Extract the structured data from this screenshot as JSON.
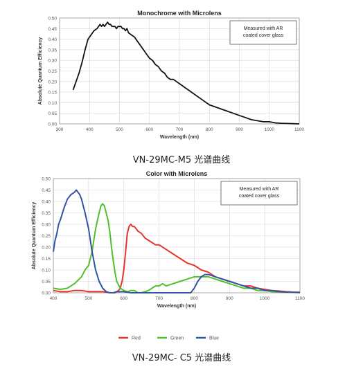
{
  "caption1": "VN-29MC-M5 光谱曲线",
  "caption2": "VN-29MC- C5 光谱曲线",
  "chart_data": [
    {
      "type": "line",
      "title": "Monochrome with Microlens",
      "xlabel": "Wavelength (nm)",
      "ylabel": "Absolute Quantum Efficiency",
      "xlim": [
        300,
        1100
      ],
      "ylim": [
        0,
        0.5
      ],
      "xticks": [
        "300",
        "400",
        "500",
        "600",
        "700",
        "800",
        "900",
        "1000",
        "1100"
      ],
      "yticks": [
        "0.00",
        "0.05",
        "0.10",
        "0.15",
        "0.20",
        "0.25",
        "0.30",
        "0.35",
        "0.40",
        "0.45",
        "0.50"
      ],
      "grid": true,
      "annotation": [
        "Measured with AR",
        "coated cover glass"
      ],
      "series": [
        {
          "color": "#111111",
          "x": [
            345,
            355,
            365,
            375,
            385,
            395,
            405,
            415,
            425,
            435,
            440,
            445,
            450,
            455,
            460,
            465,
            470,
            475,
            480,
            485,
            490,
            495,
            500,
            505,
            510,
            515,
            520,
            525,
            530,
            540,
            550,
            560,
            570,
            580,
            590,
            600,
            610,
            620,
            630,
            640,
            650,
            660,
            670,
            680,
            690,
            700,
            710,
            720,
            730,
            740,
            760,
            780,
            800,
            820,
            840,
            860,
            880,
            900,
            920,
            940,
            960,
            980,
            1000,
            1020,
            1040,
            1060,
            1080,
            1100
          ],
          "y": [
            0.16,
            0.2,
            0.24,
            0.29,
            0.35,
            0.4,
            0.42,
            0.44,
            0.45,
            0.47,
            0.46,
            0.47,
            0.46,
            0.47,
            0.48,
            0.47,
            0.47,
            0.46,
            0.46,
            0.46,
            0.45,
            0.46,
            0.46,
            0.46,
            0.45,
            0.45,
            0.44,
            0.45,
            0.43,
            0.42,
            0.41,
            0.39,
            0.37,
            0.35,
            0.33,
            0.31,
            0.3,
            0.28,
            0.27,
            0.25,
            0.24,
            0.22,
            0.21,
            0.21,
            0.2,
            0.19,
            0.18,
            0.17,
            0.16,
            0.15,
            0.13,
            0.11,
            0.09,
            0.08,
            0.07,
            0.06,
            0.05,
            0.04,
            0.03,
            0.02,
            0.015,
            0.01,
            0.01,
            0.005,
            0.003,
            0.002,
            0.001,
            0.0
          ]
        }
      ]
    },
    {
      "type": "line",
      "title": "Color with Microlens",
      "xlabel": "Wavelength (nm)",
      "ylabel": "Absolute Quantum Efficiency",
      "xlim": [
        400,
        1100
      ],
      "ylim": [
        0,
        0.5
      ],
      "xticks": [
        "400",
        "500",
        "600",
        "700",
        "800",
        "900",
        "1000",
        "1100"
      ],
      "yticks": [
        "0.00",
        "0.05",
        "0.10",
        "0.15",
        "0.20",
        "0.25",
        "0.30",
        "0.35",
        "0.40",
        "0.45",
        "0.50"
      ],
      "grid": true,
      "legend": "bottom",
      "annotation": [
        "Measured with AR",
        "coated cover glass"
      ],
      "series": [
        {
          "name": "Red",
          "color": "#e8322a",
          "x": [
            400,
            420,
            440,
            460,
            480,
            500,
            520,
            540,
            560,
            575,
            585,
            590,
            595,
            600,
            605,
            610,
            615,
            620,
            625,
            630,
            640,
            650,
            660,
            670,
            680,
            690,
            700,
            720,
            740,
            760,
            780,
            800,
            820,
            840,
            860,
            880,
            900,
            920,
            940,
            960,
            980,
            1000,
            1020,
            1040,
            1060,
            1080,
            1100
          ],
          "y": [
            0.01,
            0.005,
            0.005,
            0.01,
            0.01,
            0.005,
            0.005,
            0.005,
            0.0,
            0.0,
            0.01,
            0.02,
            0.05,
            0.1,
            0.18,
            0.26,
            0.29,
            0.3,
            0.29,
            0.29,
            0.27,
            0.26,
            0.24,
            0.23,
            0.22,
            0.21,
            0.21,
            0.19,
            0.17,
            0.15,
            0.13,
            0.12,
            0.1,
            0.09,
            0.07,
            0.06,
            0.05,
            0.04,
            0.03,
            0.03,
            0.02,
            0.015,
            0.01,
            0.008,
            0.005,
            0.003,
            0.002
          ]
        },
        {
          "name": "Green",
          "color": "#4fc02a",
          "x": [
            400,
            420,
            440,
            460,
            480,
            490,
            500,
            510,
            520,
            530,
            535,
            540,
            545,
            550,
            555,
            560,
            565,
            570,
            575,
            580,
            590,
            600,
            610,
            620,
            630,
            640,
            650,
            660,
            670,
            680,
            690,
            700,
            710,
            720,
            740,
            760,
            780,
            800,
            820,
            840,
            860,
            880,
            900,
            920,
            940,
            960,
            980,
            1000,
            1020,
            1040,
            1060,
            1080,
            1100
          ],
          "y": [
            0.02,
            0.015,
            0.02,
            0.04,
            0.07,
            0.1,
            0.12,
            0.18,
            0.28,
            0.35,
            0.38,
            0.39,
            0.38,
            0.35,
            0.32,
            0.27,
            0.2,
            0.14,
            0.09,
            0.05,
            0.02,
            0.01,
            0.005,
            0.01,
            0.01,
            0.0,
            0.0,
            0.005,
            0.01,
            0.02,
            0.03,
            0.03,
            0.04,
            0.03,
            0.04,
            0.05,
            0.06,
            0.07,
            0.07,
            0.07,
            0.06,
            0.05,
            0.04,
            0.03,
            0.02,
            0.02,
            0.01,
            0.01,
            0.005,
            0.003,
            0.002,
            0.002,
            0.001
          ]
        },
        {
          "name": "Blue",
          "color": "#3153a4",
          "x": [
            400,
            405,
            410,
            415,
            420,
            430,
            440,
            450,
            460,
            465,
            470,
            475,
            480,
            485,
            490,
            500,
            510,
            520,
            530,
            540,
            550,
            560,
            570,
            580,
            600,
            620,
            640,
            660,
            680,
            700,
            720,
            740,
            760,
            780,
            790,
            800,
            810,
            820,
            830,
            840,
            860,
            880,
            900,
            920,
            940,
            960,
            980,
            1000,
            1020,
            1040,
            1060,
            1080,
            1100
          ],
          "y": [
            0.18,
            0.23,
            0.26,
            0.3,
            0.32,
            0.37,
            0.41,
            0.43,
            0.44,
            0.45,
            0.44,
            0.43,
            0.41,
            0.38,
            0.35,
            0.28,
            0.18,
            0.1,
            0.05,
            0.02,
            0.005,
            0.0,
            0.0,
            0.005,
            0.005,
            0.0,
            0.0,
            0.0,
            0.0,
            0.0,
            0.0,
            0.0,
            0.0,
            0.0,
            0.0,
            0.02,
            0.05,
            0.07,
            0.08,
            0.08,
            0.07,
            0.06,
            0.05,
            0.04,
            0.03,
            0.02,
            0.02,
            0.01,
            0.01,
            0.005,
            0.003,
            0.002,
            0.001
          ]
        }
      ]
    }
  ]
}
